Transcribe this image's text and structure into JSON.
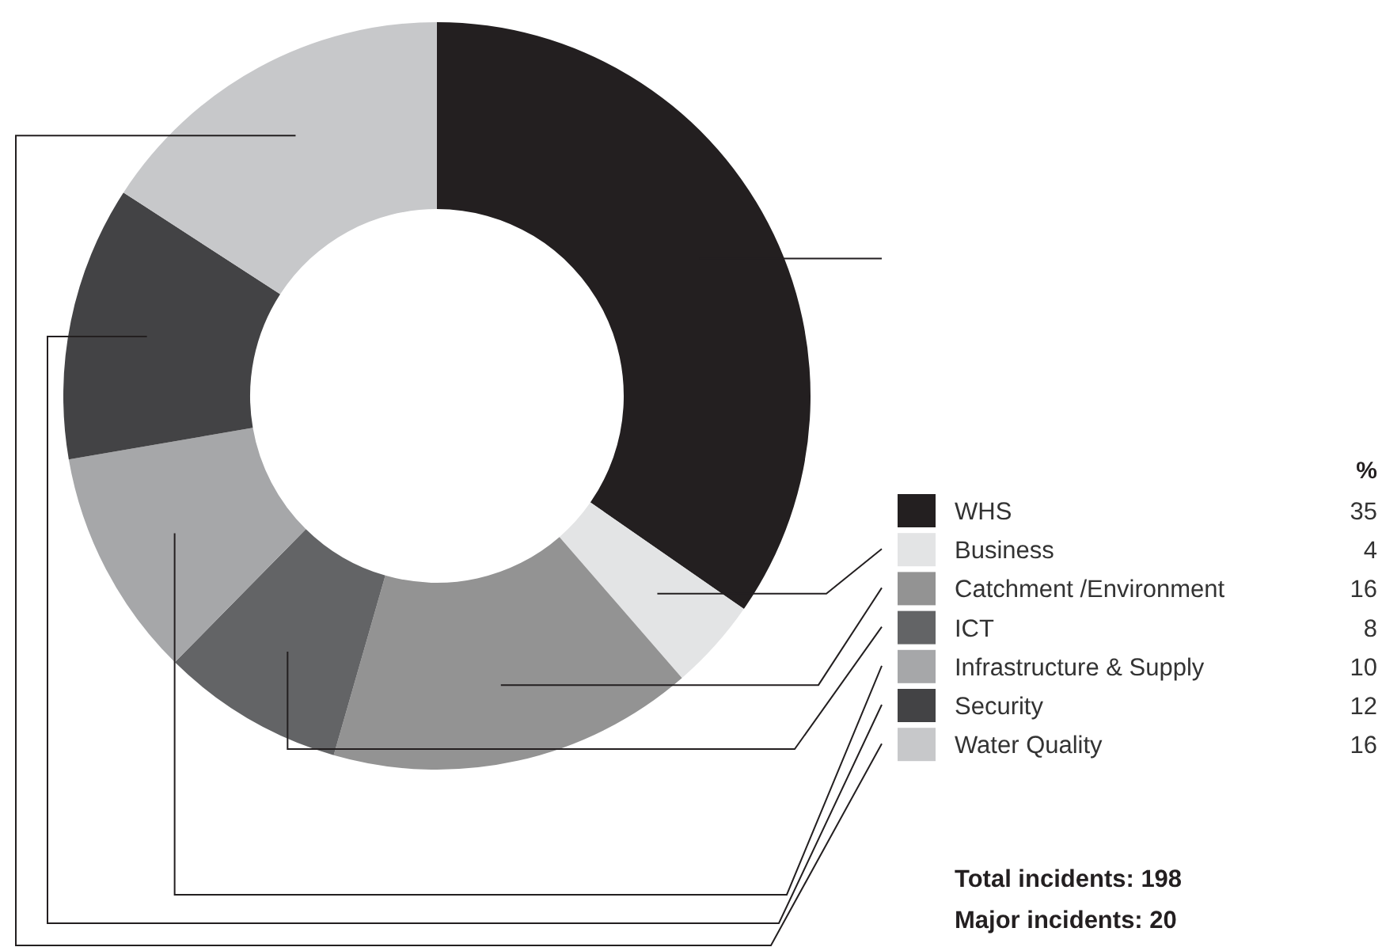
{
  "chart_data": {
    "type": "donut",
    "categories": [
      "WHS",
      "Business",
      "Catchment /Environment",
      "ICT",
      "Infrastructure & Supply",
      "Security",
      "Water Quality"
    ],
    "values": [
      35,
      4,
      16,
      8,
      10,
      12,
      16
    ],
    "colors": [
      "#231f20",
      "#e3e4e5",
      "#939393",
      "#636466",
      "#a6a7a9",
      "#434345",
      "#c7c8ca"
    ],
    "legend_title": "%",
    "legend": "right",
    "data_labels": true,
    "annotations": [
      "Total incidents: 198",
      "Major incidents: 20"
    ]
  }
}
